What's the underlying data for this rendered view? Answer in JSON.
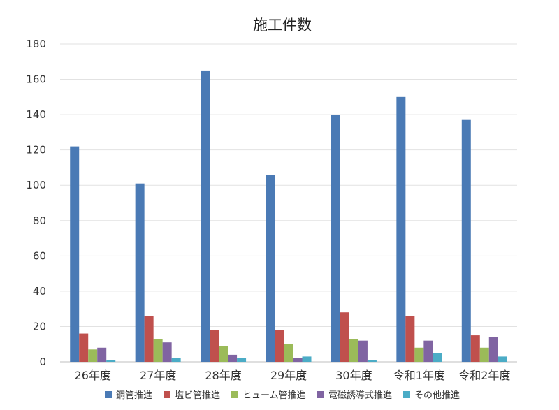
{
  "chart_data": {
    "type": "bar",
    "title": "施工件数",
    "xlabel": "",
    "ylabel": "",
    "ylim": [
      0,
      180
    ],
    "yticks": [
      0,
      20,
      40,
      60,
      80,
      100,
      120,
      140,
      160,
      180
    ],
    "grid": true,
    "legend_position": "bottom",
    "categories": [
      "26年度",
      "27年度",
      "28年度",
      "29年度",
      "30年度",
      "令和1年度",
      "令和2年度"
    ],
    "series": [
      {
        "name": "鋼管推進",
        "color": "#4a7ab5",
        "values": [
          122,
          101,
          165,
          106,
          140,
          150,
          137
        ]
      },
      {
        "name": "塩ビ管推進",
        "color": "#c0504d",
        "values": [
          16,
          26,
          18,
          18,
          28,
          26,
          15
        ]
      },
      {
        "name": "ヒューム管推進",
        "color": "#9bbb59",
        "values": [
          7,
          13,
          9,
          10,
          13,
          8,
          8
        ]
      },
      {
        "name": "電磁誘導式推進",
        "color": "#8064a2",
        "values": [
          8,
          11,
          4,
          2,
          12,
          12,
          14
        ]
      },
      {
        "name": "その他推進",
        "color": "#4bacc6",
        "values": [
          1,
          2,
          2,
          3,
          1,
          5,
          3
        ]
      }
    ]
  }
}
